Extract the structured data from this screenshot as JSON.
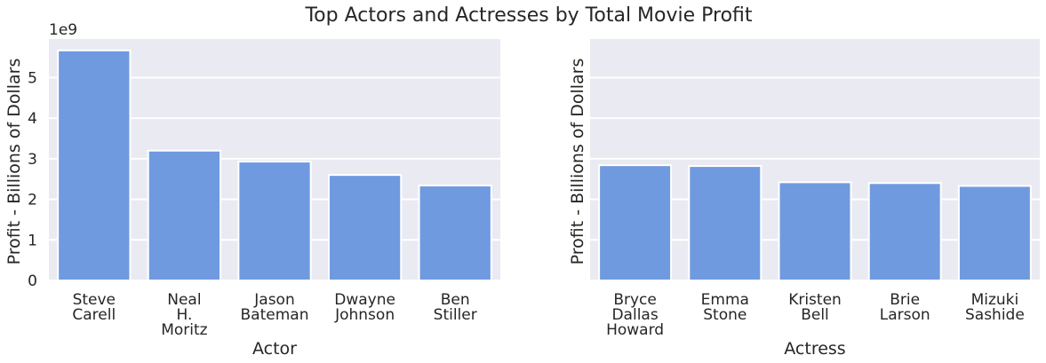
{
  "figure": {
    "title": "Top Actors and Actresses by Total Movie Profit"
  },
  "chart_data": [
    {
      "type": "bar",
      "title": "",
      "categories": [
        "Steve Carell",
        "Neal H. Moritz",
        "Jason Bateman",
        "Dwayne Johnson",
        "Ben Stiller"
      ],
      "category_lines": [
        [
          "Steve",
          "Carell"
        ],
        [
          "Neal",
          "H.",
          "Moritz"
        ],
        [
          "Jason",
          "Bateman"
        ],
        [
          "Dwayne",
          "Johnson"
        ],
        [
          "Ben",
          "Stiller"
        ]
      ],
      "values": [
        5670000000.0,
        3200000000.0,
        2930000000.0,
        2600000000.0,
        2340000000.0
      ],
      "xlabel": "Actor",
      "ylabel": "Profit - Billions of Dollars",
      "ylim": [
        0,
        5950000000.0
      ],
      "yticks": [
        0,
        1000000000.0,
        2000000000.0,
        3000000000.0,
        4000000000.0,
        5000000000.0
      ],
      "ytick_labels": [
        "0",
        "1",
        "2",
        "3",
        "4",
        "5"
      ],
      "offset_text": "1e9",
      "grid": true,
      "bar_color": "#6f9ae0",
      "background_color": "#eaeaf2"
    },
    {
      "type": "bar",
      "title": "",
      "categories": [
        "Bryce Dallas Howard",
        "Emma Stone",
        "Kristen Bell",
        "Brie Larson",
        "Mizuki Sashide"
      ],
      "category_lines": [
        [
          "Bryce",
          "Dallas",
          "Howard"
        ],
        [
          "Emma",
          "Stone"
        ],
        [
          "Kristen",
          "Bell"
        ],
        [
          "Brie",
          "Larson"
        ],
        [
          "Mizuki",
          "Sashide"
        ]
      ],
      "values": [
        2840000000.0,
        2820000000.0,
        2420000000.0,
        2400000000.0,
        2330000000.0
      ],
      "xlabel": "Actress",
      "ylabel": "Profit - Billions of Dollars",
      "ylim": [
        0,
        5950000000.0
      ],
      "yticks": [
        0,
        1000000000.0,
        2000000000.0,
        3000000000.0,
        4000000000.0,
        5000000000.0
      ],
      "ytick_labels": [],
      "offset_text": "",
      "grid": true,
      "bar_color": "#6f9ae0",
      "background_color": "#eaeaf2"
    }
  ]
}
